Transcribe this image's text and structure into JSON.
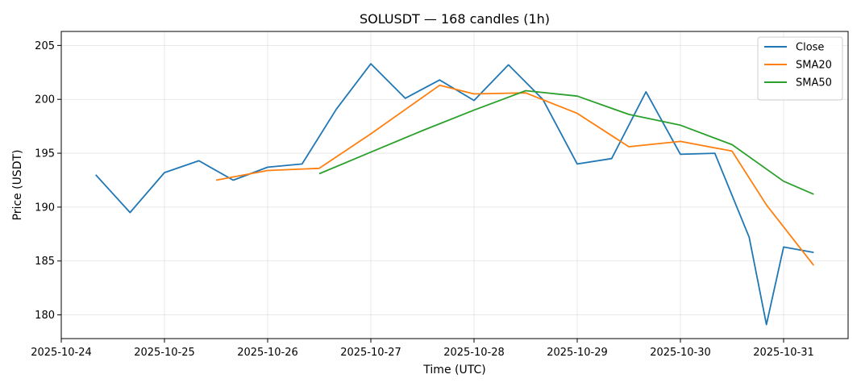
{
  "chart_data": {
    "type": "line",
    "title": "SOLUSDT — 168 candles (1h)",
    "xlabel": "Time (UTC)",
    "ylabel": "Price (USDT)",
    "x_tick_labels": [
      "2025-10-24",
      "2025-10-25",
      "2025-10-26",
      "2025-10-27",
      "2025-10-28",
      "2025-10-29",
      "2025-10-30",
      "2025-10-31"
    ],
    "y_ticks": [
      180,
      185,
      190,
      195,
      200,
      205
    ],
    "ylim": [
      177.8,
      206.3
    ],
    "xlim": [
      "2025-10-24 00:00",
      "2025-10-31 15:00"
    ],
    "grid": true,
    "legend_position": "top-right",
    "series": [
      {
        "name": "Close",
        "color": "#1f77b4",
        "x": [
          "2025-10-24 08:00",
          "2025-10-24 16:00",
          "2025-10-25 00:00",
          "2025-10-25 08:00",
          "2025-10-25 16:00",
          "2025-10-26 00:00",
          "2025-10-26 08:00",
          "2025-10-26 16:00",
          "2025-10-27 00:00",
          "2025-10-27 08:00",
          "2025-10-27 16:00",
          "2025-10-28 00:00",
          "2025-10-28 08:00",
          "2025-10-28 16:00",
          "2025-10-29 00:00",
          "2025-10-29 08:00",
          "2025-10-29 16:00",
          "2025-10-30 00:00",
          "2025-10-30 08:00",
          "2025-10-30 16:00",
          "2025-10-30 20:00",
          "2025-10-31 00:00",
          "2025-10-31 07:00"
        ],
        "values": [
          193.0,
          189.5,
          193.2,
          194.3,
          192.5,
          193.7,
          194.0,
          199.1,
          203.3,
          200.1,
          201.8,
          199.9,
          203.2,
          200.0,
          194.0,
          194.5,
          200.7,
          194.9,
          195.0,
          187.2,
          179.1,
          186.3,
          185.8
        ]
      },
      {
        "name": "SMA20",
        "color": "#ff7f0e",
        "x": [
          "2025-10-25 12:00",
          "2025-10-26 00:00",
          "2025-10-26 12:00",
          "2025-10-27 00:00",
          "2025-10-27 16:00",
          "2025-10-28 00:00",
          "2025-10-28 12:00",
          "2025-10-29 00:00",
          "2025-10-29 12:00",
          "2025-10-30 00:00",
          "2025-10-30 12:00",
          "2025-10-30 20:00",
          "2025-10-31 07:00"
        ],
        "values": [
          192.5,
          193.4,
          193.6,
          196.8,
          201.3,
          200.5,
          200.6,
          198.7,
          195.6,
          196.1,
          195.2,
          190.2,
          184.6
        ]
      },
      {
        "name": "SMA50",
        "color": "#2ca02c",
        "x": [
          "2025-10-26 12:00",
          "2025-10-27 00:00",
          "2025-10-27 12:00",
          "2025-10-28 00:00",
          "2025-10-28 12:00",
          "2025-10-29 00:00",
          "2025-10-29 12:00",
          "2025-10-30 00:00",
          "2025-10-30 12:00",
          "2025-10-31 00:00",
          "2025-10-31 07:00"
        ],
        "values": [
          193.1,
          195.1,
          197.1,
          199.0,
          200.8,
          200.3,
          198.6,
          197.6,
          195.8,
          192.4,
          191.2
        ]
      }
    ]
  }
}
